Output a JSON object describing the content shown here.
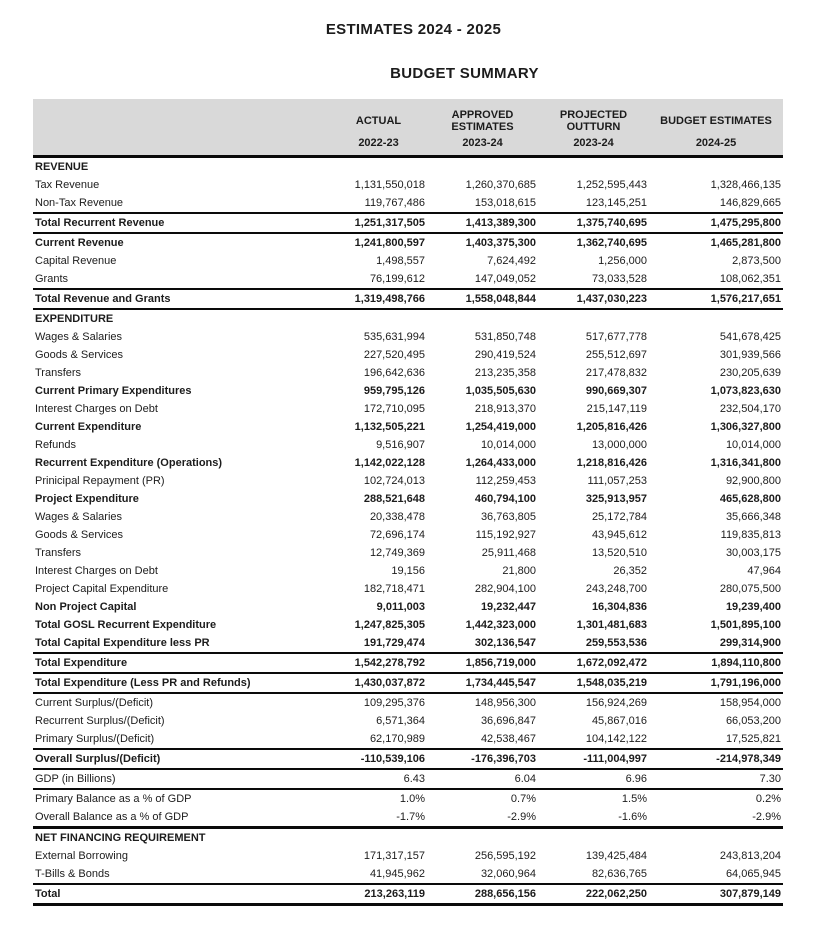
{
  "page": {
    "title": "ESTIMATES 2024 - 2025",
    "subtitle": "BUDGET SUMMARY"
  },
  "colors": {
    "header_background": "#d9d9d9",
    "rule": "#0a0a0a",
    "text": "#1c1c1c"
  },
  "table": {
    "columns": [
      {
        "label": "ACTUAL",
        "year": "2022-23"
      },
      {
        "label": "APPROVED ESTIMATES",
        "year": "2023-24"
      },
      {
        "label": "PROJECTED OUTTURN",
        "year": "2023-24"
      },
      {
        "label": "BUDGET ESTIMATES",
        "year": "2024-25"
      }
    ],
    "rows": [
      {
        "label": "REVENUE",
        "style": "section",
        "values": [
          "",
          "",
          "",
          ""
        ]
      },
      {
        "label": "Tax Revenue",
        "style": "",
        "values": [
          "1,131,550,018",
          "1,260,370,685",
          "1,252,595,443",
          "1,328,466,135"
        ]
      },
      {
        "label": "Non-Tax Revenue",
        "style": "",
        "values": [
          "119,767,486",
          "153,018,615",
          "123,145,251",
          "146,829,665"
        ]
      },
      {
        "label": "Total Recurrent Revenue",
        "style": "bold rule-top rule-bottom",
        "values": [
          "1,251,317,505",
          "1,413,389,300",
          "1,375,740,695",
          "1,475,295,800"
        ]
      },
      {
        "label": "Current Revenue",
        "style": "bold",
        "values": [
          "1,241,800,597",
          "1,403,375,300",
          "1,362,740,695",
          "1,465,281,800"
        ]
      },
      {
        "label": "Capital Revenue",
        "style": "",
        "values": [
          "1,498,557",
          "7,624,492",
          "1,256,000",
          "2,873,500"
        ]
      },
      {
        "label": "Grants",
        "style": "",
        "values": [
          "76,199,612",
          "147,049,052",
          "73,033,528",
          "108,062,351"
        ]
      },
      {
        "label": "Total Revenue and Grants",
        "style": "bold rule-top rule-bottom",
        "values": [
          "1,319,498,766",
          "1,558,048,844",
          "1,437,030,223",
          "1,576,217,651"
        ]
      },
      {
        "label": "EXPENDITURE",
        "style": "section",
        "values": [
          "",
          "",
          "",
          ""
        ]
      },
      {
        "label": "Wages & Salaries",
        "style": "",
        "values": [
          "535,631,994",
          "531,850,748",
          "517,677,778",
          "541,678,425"
        ]
      },
      {
        "label": "Goods & Services",
        "style": "",
        "values": [
          "227,520,495",
          "290,419,524",
          "255,512,697",
          "301,939,566"
        ]
      },
      {
        "label": "Transfers",
        "style": "",
        "values": [
          "196,642,636",
          "213,235,358",
          "217,478,832",
          "230,205,639"
        ]
      },
      {
        "label": "Current Primary Expenditures",
        "style": "bold",
        "values": [
          "959,795,126",
          "1,035,505,630",
          "990,669,307",
          "1,073,823,630"
        ]
      },
      {
        "label": "Interest Charges on Debt",
        "style": "",
        "values": [
          "172,710,095",
          "218,913,370",
          "215,147,119",
          "232,504,170"
        ]
      },
      {
        "label": "Current Expenditure",
        "style": "bold",
        "values": [
          "1,132,505,221",
          "1,254,419,000",
          "1,205,816,426",
          "1,306,327,800"
        ]
      },
      {
        "label": "Refunds",
        "style": "",
        "values": [
          "9,516,907",
          "10,014,000",
          "13,000,000",
          "10,014,000"
        ]
      },
      {
        "label": "Recurrent Expenditure (Operations)",
        "style": "bold",
        "values": [
          "1,142,022,128",
          "1,264,433,000",
          "1,218,816,426",
          "1,316,341,800"
        ]
      },
      {
        "label": "Prinicipal Repayment (PR)",
        "style": "",
        "values": [
          "102,724,013",
          "112,259,453",
          "111,057,253",
          "92,900,800"
        ]
      },
      {
        "label": "Project Expenditure",
        "style": "bold",
        "values": [
          "288,521,648",
          "460,794,100",
          "325,913,957",
          "465,628,800"
        ]
      },
      {
        "label": "Wages & Salaries",
        "style": "",
        "values": [
          "20,338,478",
          "36,763,805",
          "25,172,784",
          "35,666,348"
        ]
      },
      {
        "label": "Goods & Services",
        "style": "",
        "values": [
          "72,696,174",
          "115,192,927",
          "43,945,612",
          "119,835,813"
        ]
      },
      {
        "label": "Transfers",
        "style": "",
        "values": [
          "12,749,369",
          "25,911,468",
          "13,520,510",
          "30,003,175"
        ]
      },
      {
        "label": "Interest Charges on Debt",
        "style": "",
        "values": [
          "19,156",
          "21,800",
          "26,352",
          "47,964"
        ]
      },
      {
        "label": "Project Capital Expenditure",
        "style": "",
        "values": [
          "182,718,471",
          "282,904,100",
          "243,248,700",
          "280,075,500"
        ]
      },
      {
        "label": "Non Project Capital",
        "style": "bold",
        "values": [
          "9,011,003",
          "19,232,447",
          "16,304,836",
          "19,239,400"
        ]
      },
      {
        "label": "Total GOSL Recurrent Expenditure",
        "style": "bold",
        "values": [
          "1,247,825,305",
          "1,442,323,000",
          "1,301,481,683",
          "1,501,895,100"
        ]
      },
      {
        "label": "Total Capital Expenditure less PR",
        "style": "bold",
        "values": [
          "191,729,474",
          "302,136,547",
          "259,553,536",
          "299,314,900"
        ]
      },
      {
        "label": "Total Expenditure",
        "style": "bold rule-top rule-bottom",
        "values": [
          "1,542,278,792",
          "1,856,719,000",
          "1,672,092,472",
          "1,894,110,800"
        ]
      },
      {
        "label": "Total Expenditure (Less PR and Refunds)",
        "style": "bold rule-bottom",
        "values": [
          "1,430,037,872",
          "1,734,445,547",
          "1,548,035,219",
          "1,791,196,000"
        ]
      },
      {
        "label": "Current Surplus/(Deficit)",
        "style": "",
        "values": [
          "109,295,376",
          "148,956,300",
          "156,924,269",
          "158,954,000"
        ]
      },
      {
        "label": "Recurrent Surplus/(Deficit)",
        "style": "",
        "values": [
          "6,571,364",
          "36,696,847",
          "45,867,016",
          "66,053,200"
        ]
      },
      {
        "label": "Primary Surplus/(Deficit)",
        "style": "",
        "values": [
          "62,170,989",
          "42,538,467",
          "104,142,122",
          "17,525,821"
        ]
      },
      {
        "label": "Overall Surplus/(Deficit)",
        "style": "bold rule-top rule-bottom",
        "values": [
          "-110,539,106",
          "-176,396,703",
          "-111,004,997",
          "-214,978,349"
        ]
      },
      {
        "label": "GDP (in Billions)",
        "style": "rule-bottom",
        "values": [
          "6.43",
          "6.04",
          "6.96",
          "7.30"
        ]
      },
      {
        "label": "Primary Balance as a % of GDP",
        "style": "",
        "values": [
          "1.0%",
          "0.7%",
          "1.5%",
          "0.2%"
        ]
      },
      {
        "label": "Overall Balance as a % of GDP",
        "style": "rule-bottom-thick",
        "values": [
          "-1.7%",
          "-2.9%",
          "-1.6%",
          "-2.9%"
        ]
      },
      {
        "label": "NET FINANCING REQUIREMENT",
        "style": "section",
        "values": [
          "",
          "",
          "",
          ""
        ]
      },
      {
        "label": "External Borrowing",
        "style": "",
        "values": [
          "171,317,157",
          "256,595,192",
          "139,425,484",
          "243,813,204"
        ]
      },
      {
        "label": "T-Bills & Bonds",
        "style": "",
        "values": [
          "41,945,962",
          "32,060,964",
          "82,636,765",
          "64,065,945"
        ]
      },
      {
        "label": "Total",
        "style": "bold rule-top rule-bottom-thick",
        "values": [
          "213,263,119",
          "288,656,156",
          "222,062,250",
          "307,879,149"
        ]
      }
    ]
  }
}
